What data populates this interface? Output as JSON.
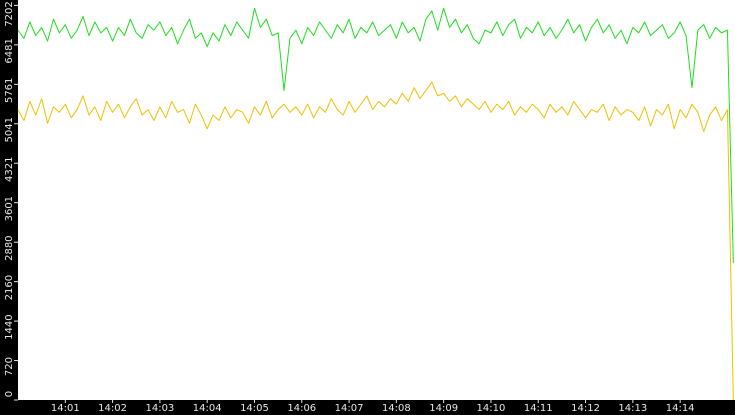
{
  "chart_data": {
    "type": "line",
    "x": [
      0,
      0.125,
      0.25,
      0.375,
      0.5,
      0.625,
      0.75,
      0.875,
      1,
      1.125,
      1.25,
      1.375,
      1.5,
      1.625,
      1.75,
      1.875,
      2,
      2.125,
      2.25,
      2.375,
      2.5,
      2.625,
      2.75,
      2.875,
      3,
      3.125,
      3.25,
      3.375,
      3.5,
      3.625,
      3.75,
      3.875,
      4,
      4.125,
      4.25,
      4.375,
      4.5,
      4.625,
      4.75,
      4.875,
      5,
      5.125,
      5.25,
      5.375,
      5.5,
      5.625,
      5.75,
      5.875,
      6,
      6.125,
      6.25,
      6.375,
      6.5,
      6.625,
      6.75,
      6.875,
      7,
      7.125,
      7.25,
      7.375,
      7.5,
      7.625,
      7.75,
      7.875,
      8,
      8.125,
      8.25,
      8.375,
      8.5,
      8.625,
      8.75,
      8.875,
      9,
      9.125,
      9.25,
      9.375,
      9.5,
      9.625,
      9.75,
      9.875,
      10,
      10.125,
      10.25,
      10.375,
      10.5,
      10.625,
      10.75,
      10.875,
      11,
      11.125,
      11.25,
      11.375,
      11.5,
      11.625,
      11.75,
      11.875,
      12,
      12.125,
      12.25,
      12.375,
      12.5,
      12.625,
      12.75,
      12.875,
      13,
      13.125,
      13.25,
      13.375,
      13.5,
      13.625,
      13.75,
      13.875,
      14,
      14.125,
      14.25,
      14.375,
      14.5,
      14.625,
      14.75,
      14.875,
      15,
      15.125
    ],
    "series": [
      {
        "color": "#1ee01e",
        "values": [
          6750,
          6600,
          6900,
          6650,
          6800,
          6550,
          6950,
          6700,
          6850,
          6600,
          6750,
          7000,
          6650,
          6900,
          6700,
          6800,
          6550,
          6800,
          6650,
          6950,
          6700,
          6600,
          6850,
          6750,
          6900,
          6650,
          6800,
          6500,
          6750,
          6950,
          6600,
          6700,
          6450,
          6700,
          6550,
          6850,
          6650,
          6900,
          6750,
          6600,
          7150,
          6800,
          6950,
          6650,
          6700,
          5650,
          6600,
          6750,
          6500,
          6800,
          6650,
          6900,
          6750,
          6600,
          6850,
          6700,
          6950,
          6600,
          6800,
          6700,
          6900,
          6650,
          6750,
          6850,
          6600,
          6900,
          6700,
          6800,
          6550,
          6950,
          7100,
          6750,
          7150,
          6800,
          6950,
          6700,
          6850,
          6600,
          6500,
          6750,
          6700,
          6900,
          6650,
          6850,
          6950,
          6600,
          6800,
          6700,
          6900,
          6650,
          6800,
          6600,
          6750,
          6950,
          6700,
          6850,
          6550,
          6800,
          6950,
          6700,
          6850,
          6600,
          6750,
          6500,
          6800,
          6700,
          6900,
          6650,
          6750,
          6850,
          6600,
          6700,
          6900,
          6650,
          5700,
          6750,
          6850,
          6600,
          6800,
          6700,
          6750,
          2500
        ]
      },
      {
        "color": "#f0c000",
        "values": [
          5300,
          5100,
          5450,
          5200,
          5500,
          5050,
          5350,
          5250,
          5400,
          5150,
          5300,
          5550,
          5200,
          5350,
          5100,
          5450,
          5250,
          5400,
          5150,
          5350,
          5500,
          5200,
          5300,
          5100,
          5350,
          5150,
          5450,
          5250,
          5300,
          5050,
          5400,
          5200,
          4950,
          5200,
          5100,
          5350,
          5150,
          5300,
          5250,
          5050,
          5350,
          5200,
          5450,
          5150,
          5300,
          5400,
          5250,
          5350,
          5200,
          5400,
          5150,
          5350,
          5250,
          5500,
          5300,
          5200,
          5450,
          5250,
          5400,
          5550,
          5300,
          5450,
          5350,
          5500,
          5400,
          5600,
          5450,
          5700,
          5500,
          5650,
          5800,
          5550,
          5600,
          5450,
          5550,
          5350,
          5500,
          5400,
          5300,
          5450,
          5250,
          5400,
          5300,
          5450,
          5200,
          5350,
          5250,
          5400,
          5300,
          5150,
          5400,
          5250,
          5350,
          5200,
          5450,
          5300,
          5150,
          5300,
          5250,
          5400,
          5100,
          5350,
          5200,
          5300,
          5250,
          5100,
          5350,
          5000,
          5300,
          5200,
          5400,
          4950,
          5300,
          5150,
          5400,
          5250,
          4900,
          5200,
          5350,
          5100,
          5300,
          0
        ]
      }
    ],
    "xlim": [
      0,
      15.16
    ],
    "xticks": [
      {
        "value": 1,
        "label": "14:01"
      },
      {
        "value": 2,
        "label": "14:02"
      },
      {
        "value": 3,
        "label": "14:03"
      },
      {
        "value": 4,
        "label": "14:04"
      },
      {
        "value": 5,
        "label": "14:05"
      },
      {
        "value": 6,
        "label": "14:06"
      },
      {
        "value": 7,
        "label": "14:07"
      },
      {
        "value": 8,
        "label": "14:08"
      },
      {
        "value": 9,
        "label": "14:09"
      },
      {
        "value": 10,
        "label": "14:10"
      },
      {
        "value": 11,
        "label": "14:11"
      },
      {
        "value": 12,
        "label": "14:12"
      },
      {
        "value": 13,
        "label": "14:13"
      },
      {
        "value": 14,
        "label": "14:14"
      }
    ],
    "ylim": [
      0,
      7300
    ],
    "yticks": [
      0,
      720,
      1440,
      2160,
      2880,
      3601,
      4321,
      5041,
      5761,
      6481,
      7202
    ]
  }
}
